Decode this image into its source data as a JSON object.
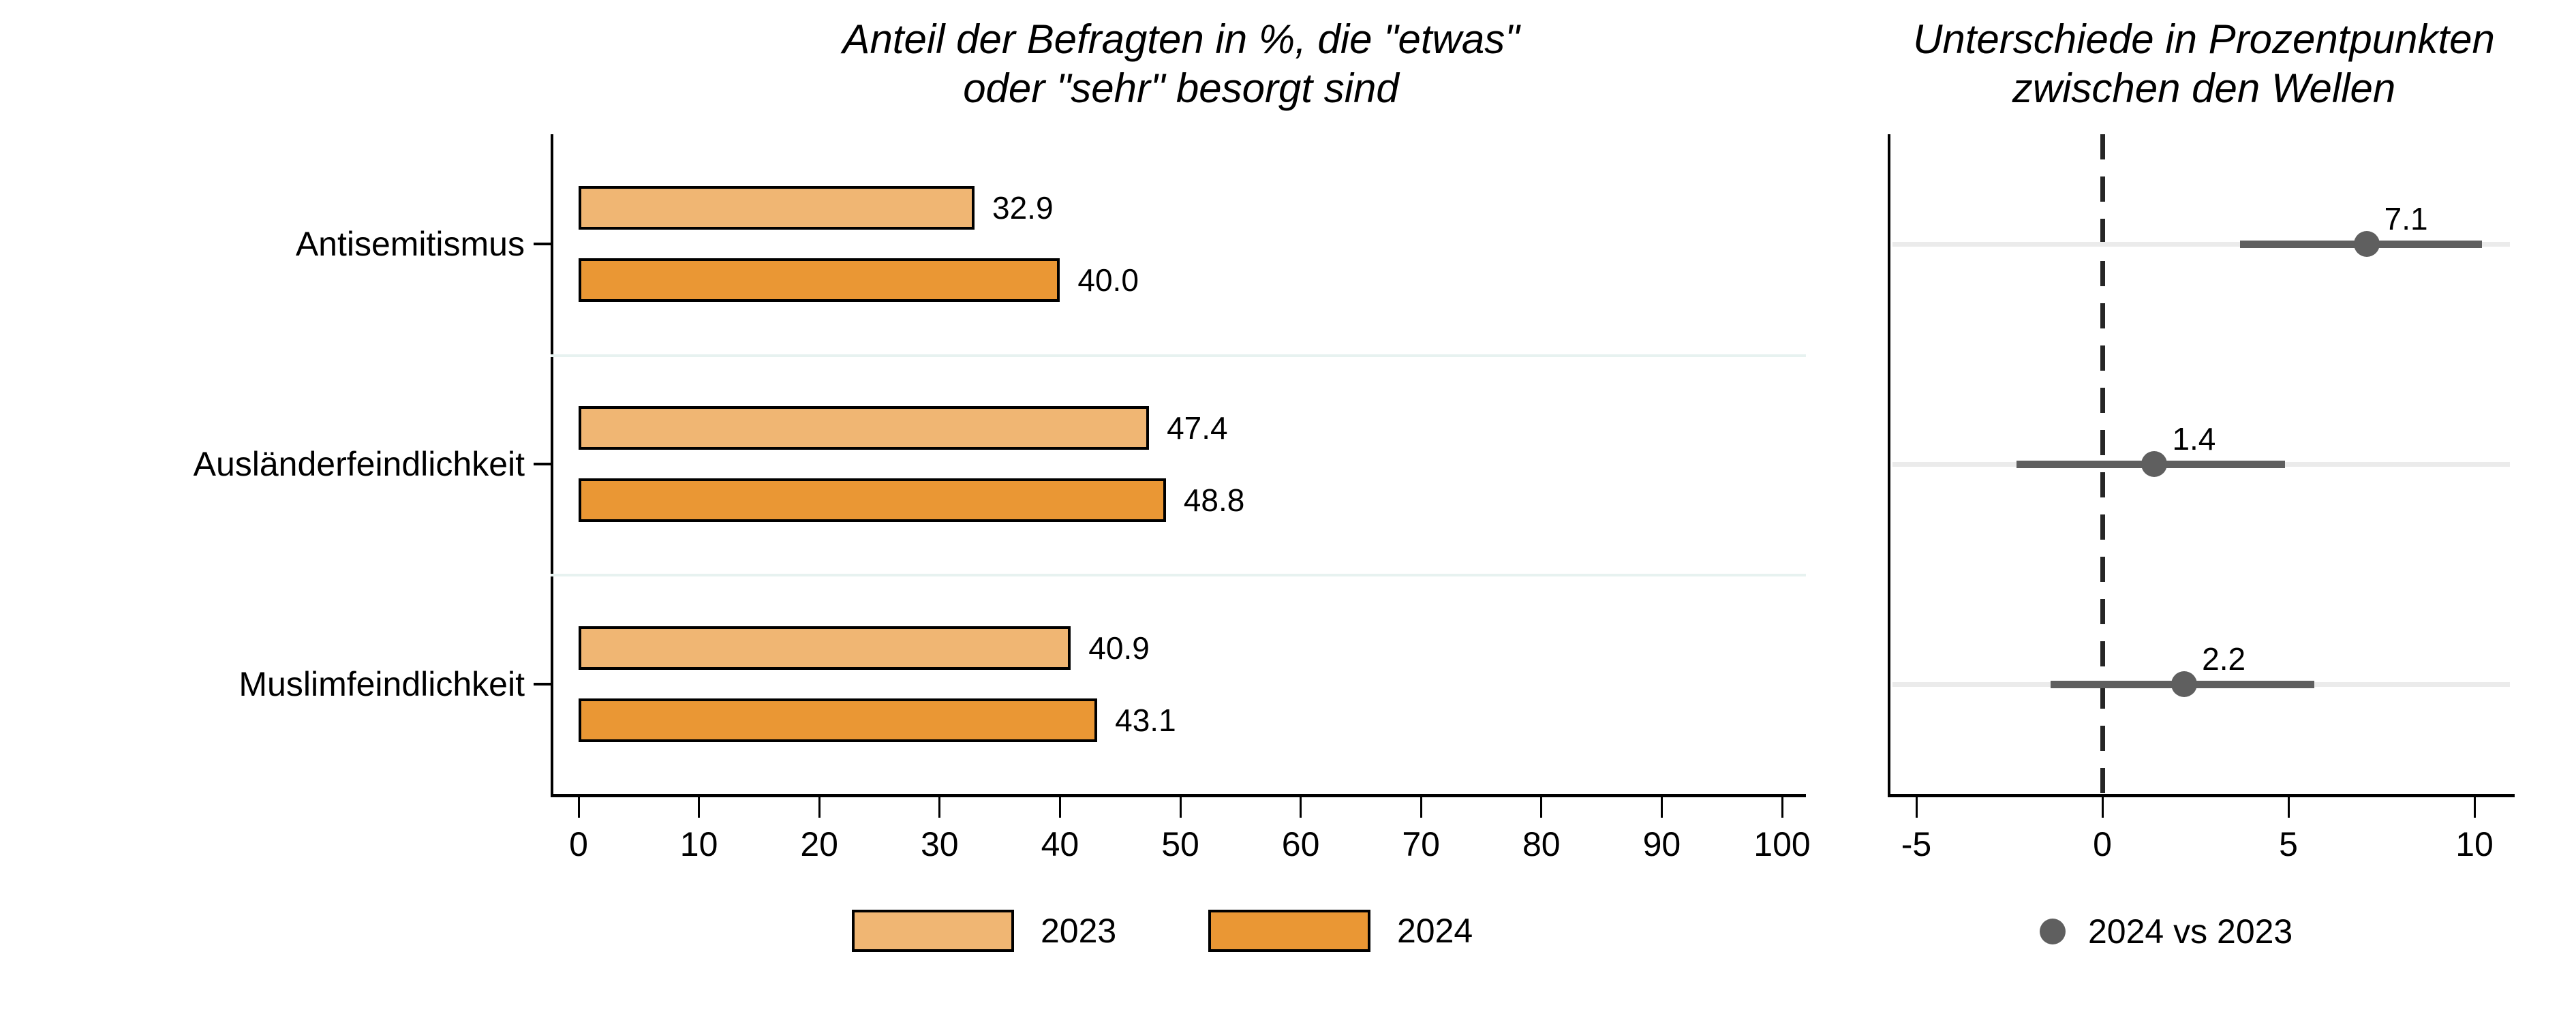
{
  "titles": {
    "left_line1": "Anteil der Befragten in %, die \"etwas\"",
    "left_line2": "oder \"sehr\" besorgt sind",
    "right_line1": "Unterschiede in Prozentpunkten",
    "right_line2": "zwischen den Wellen"
  },
  "colors": {
    "bar_2023": "#f0b673",
    "bar_2024": "#ea9734",
    "bar_border": "#000000",
    "separator": "#e7f2f0",
    "gridline": "#ebebeb",
    "interval": "#5f5f5f",
    "dot": "#5f5f5f",
    "refline": "#262626",
    "axis": "#000000",
    "text": "#000000"
  },
  "chart_data": [
    {
      "type": "bar",
      "orientation": "horizontal",
      "title": "Anteil der Befragten in %, die \"etwas\" oder \"sehr\" besorgt sind",
      "categories": [
        "Antisemitismus",
        "Ausländerfeindlichkeit",
        "Muslimfeindlichkeit"
      ],
      "series": [
        {
          "name": "2023",
          "values": [
            32.9,
            47.4,
            40.9
          ]
        },
        {
          "name": "2024",
          "values": [
            40.0,
            48.8,
            43.1
          ]
        }
      ],
      "xlim": [
        0,
        100
      ],
      "xticks": [
        0,
        10,
        20,
        30,
        40,
        50,
        60,
        70,
        80,
        90,
        100
      ],
      "grid": "light category separator lines between groups",
      "legend_position": "bottom",
      "value_labels_shown": true
    },
    {
      "type": "scatter",
      "subtype": "dot-with-interval",
      "title": "Unterschiede in Prozentpunkten zwischen den Wellen",
      "categories": [
        "Antisemitismus",
        "Ausländerfeindlichkeit",
        "Muslimfeindlichkeit"
      ],
      "series": [
        {
          "name": "2024 vs 2023",
          "values": [
            7.1,
            1.4,
            2.2
          ],
          "ci_low": [
            3.7,
            -2.3,
            -1.4
          ],
          "ci_high": [
            10.2,
            4.9,
            5.7
          ]
        }
      ],
      "xlim": [
        -5.8,
        11.0
      ],
      "xticks": [
        -5,
        0,
        5,
        10
      ],
      "refline": 0,
      "refline_style": "dashed vertical",
      "grid": "light horizontal gridline per category",
      "legend_position": "bottom",
      "value_labels_shown": true
    }
  ]
}
